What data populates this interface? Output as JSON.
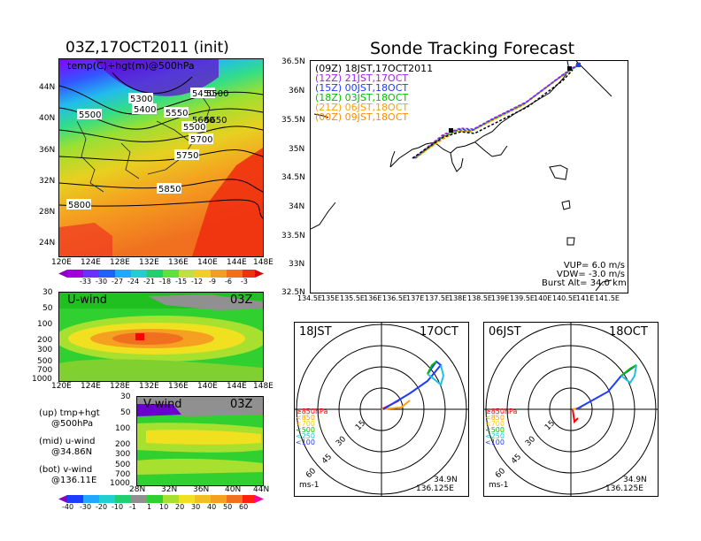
{
  "left": {
    "title": "03Z,17OCT2011 (init)",
    "map_label": "temp(C)+hgt(m)@500hPa",
    "lat_ticks": [
      "44N",
      "40N",
      "36N",
      "32N",
      "28N",
      "24N"
    ],
    "lon_ticks": [
      "120E",
      "124E",
      "128E",
      "132E",
      "136E",
      "140E",
      "144E",
      "148E"
    ],
    "contours": [
      "5300",
      "5400",
      "5500",
      "5450",
      "5500",
      "5500",
      "5550",
      "5600",
      "5650",
      "5700",
      "5750",
      "5800",
      "5850"
    ],
    "temp_colorbar": [
      "-33",
      "-30",
      "-27",
      "-24",
      "-21",
      "-18",
      "-15",
      "-12",
      "-9",
      "-6",
      "-3"
    ],
    "u_title": "U-wind",
    "u_time": "03Z",
    "v_title": "V-wind",
    "v_time": "03Z",
    "p_ticks": [
      "30",
      "50",
      "100",
      "200",
      "300",
      "500",
      "700",
      "1000"
    ],
    "v_lat_ticks": [
      "28N",
      "32N",
      "36N",
      "40N",
      "44N"
    ],
    "wind_colorbar": [
      "-40",
      "-30",
      "-20",
      "-10",
      "-1",
      "1",
      "10",
      "20",
      "30",
      "40",
      "50",
      "60"
    ],
    "legend": [
      "(up) tmp+hgt",
      "@500hPa",
      "(mid) u-wind",
      "@34.86N",
      "(bot) v-wind",
      "@136.11E"
    ]
  },
  "right": {
    "title": "Sonde Tracking Forecast",
    "runs": [
      {
        "text": "(09Z) 18JST,17OCT2011",
        "color": "#000000"
      },
      {
        "text": "(12Z) 21JST,17OCT",
        "color": "#a020f0"
      },
      {
        "text": "(15Z) 00JST,18OCT",
        "color": "#1e3cff"
      },
      {
        "text": "(18Z) 03JST,18OCT",
        "color": "#00c000"
      },
      {
        "text": "(21Z) 06JST,18OCT",
        "color": "#ffa000"
      },
      {
        "text": "(00Z) 09JST,18OCT",
        "color": "#ff8c00"
      }
    ],
    "lat_ticks": [
      "36.5N",
      "36N",
      "35.5N",
      "35N",
      "34.5N",
      "34N",
      "33.5N",
      "33N",
      "32.5N"
    ],
    "lon_ticks": [
      "134.5E",
      "135E",
      "135.5E",
      "136E",
      "136.5E",
      "137E",
      "137.5E",
      "138E",
      "138.5E",
      "139E",
      "139.5E",
      "140E",
      "140.5E",
      "141E",
      "141.5E"
    ],
    "params": [
      "VUP= 6.0 m/s",
      "VDW= -3.0 m/s",
      "Burst Alt= 34.0 km"
    ],
    "hodo": [
      {
        "time": "18JST",
        "date": "17OCT",
        "lat": "34.9N",
        "lon": "136.125E",
        "units": "ms-1"
      },
      {
        "time": "06JST",
        "date": "18OCT",
        "lat": "34.9N",
        "lon": "136.125E",
        "units": "ms-1"
      }
    ],
    "ring_labels": [
      "15",
      "30",
      "45",
      "60"
    ],
    "levels": [
      "≥850hPa",
      "<850",
      "<700",
      "<500",
      "<250",
      "<100"
    ]
  }
}
